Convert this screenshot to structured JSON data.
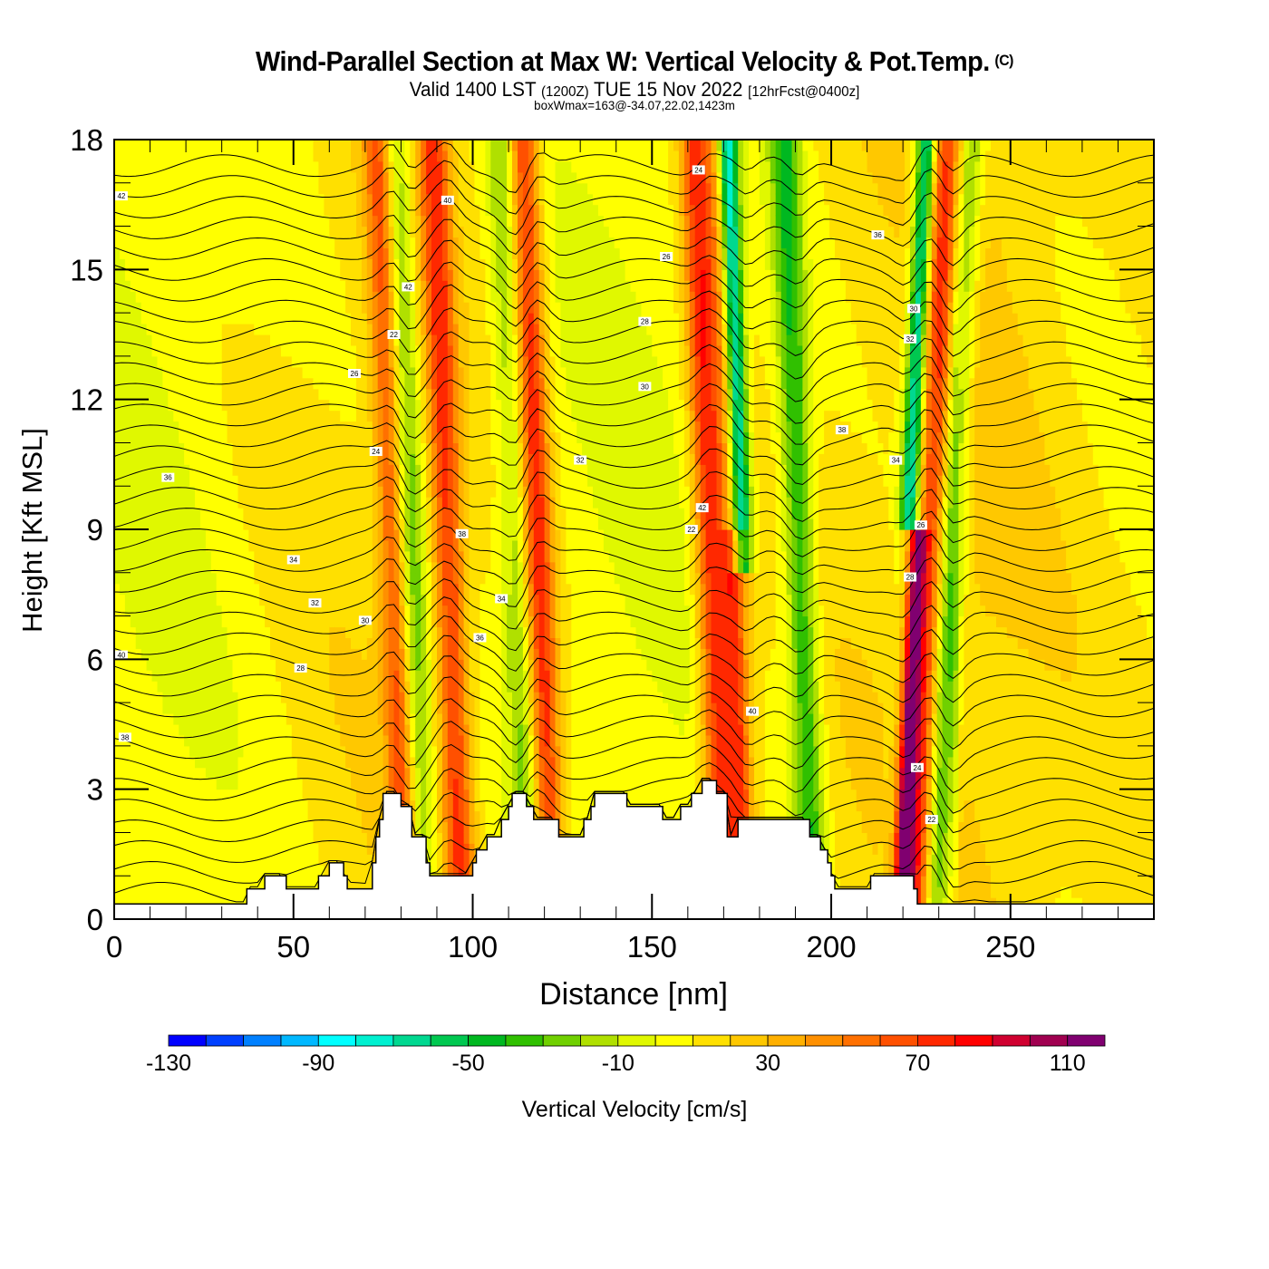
{
  "chart_data": {
    "type": "heatmap",
    "title": "Wind-Parallel Section at Max W: Vertical Velocity & Pot.Temp.",
    "copyright": "(C)",
    "subtitle_main": "Valid 1400 LST",
    "subtitle_utc": "(1200Z)",
    "subtitle_date": "TUE 15 Nov 2022",
    "subtitle_fcst": "[12hrFcst@0400z]",
    "subsubtitle": "boxWmax=163@-34.07,22.02,1423m",
    "xlabel": "Distance [nm]",
    "ylabel": "Height [Kft MSL]",
    "xlim": [
      0,
      290
    ],
    "ylim": [
      0,
      18
    ],
    "xticks": [
      "0",
      "50",
      "100",
      "150",
      "200",
      "250"
    ],
    "xtick_values": [
      0,
      50,
      100,
      150,
      200,
      250
    ],
    "yticks": [
      "0",
      "3",
      "6",
      "9",
      "12",
      "15",
      "18"
    ],
    "ytick_values": [
      0,
      3,
      6,
      9,
      12,
      15,
      18
    ],
    "colorbar": {
      "label": "Vertical Velocity [cm/s]",
      "tick_labels": [
        "-130",
        "-90",
        "-50",
        "-10",
        "30",
        "70",
        "110"
      ],
      "tick_values": [
        -130,
        -90,
        -50,
        -10,
        30,
        70,
        110
      ],
      "min": -130,
      "step": 10,
      "colors": [
        "#0000ff",
        "#0040ff",
        "#0080ff",
        "#00b8ff",
        "#00ffff",
        "#00f0d0",
        "#00d890",
        "#00c850",
        "#00b820",
        "#30c000",
        "#70d000",
        "#b0e000",
        "#e0f800",
        "#ffff00",
        "#ffe000",
        "#ffc800",
        "#ffb000",
        "#ff9000",
        "#ff7000",
        "#ff5000",
        "#ff2800",
        "#ff0000",
        "#d00030",
        "#a00050",
        "#800070"
      ]
    },
    "updraft_bands": [
      {
        "x_nm": 78,
        "w_cms": 60
      },
      {
        "x_nm": 93,
        "w_cms": 60
      },
      {
        "x_nm": 118,
        "w_cms": 70
      },
      {
        "x_nm": 166,
        "w_cms": 70
      },
      {
        "x_nm": 173,
        "w_cms": 80
      },
      {
        "x_nm": 224,
        "w_cms": 100
      },
      {
        "x_nm": 229,
        "w_cms": 70
      }
    ],
    "downdraft_bands": [
      {
        "x_nm": 82,
        "w_cms": -50
      },
      {
        "x_nm": 112,
        "w_cms": -30
      },
      {
        "x_nm": 175,
        "w_cms": -110
      },
      {
        "x_nm": 191,
        "w_cms": -50
      },
      {
        "x_nm": 222,
        "w_cms": -100
      },
      {
        "x_nm": 233,
        "w_cms": -60
      }
    ],
    "terrain_kft": [
      [
        0,
        0.35
      ],
      [
        36,
        0.35
      ],
      [
        37,
        0.7
      ],
      [
        41,
        0.7
      ],
      [
        42,
        1.0
      ],
      [
        47,
        1.0
      ],
      [
        48,
        0.7
      ],
      [
        56,
        0.7
      ],
      [
        57,
        1.0
      ],
      [
        59,
        1.0
      ],
      [
        60,
        1.3
      ],
      [
        63,
        1.3
      ],
      [
        64,
        1.0
      ],
      [
        65,
        0.7
      ],
      [
        71,
        0.7
      ],
      [
        72,
        1.3
      ],
      [
        73,
        1.9
      ],
      [
        74,
        2.3
      ],
      [
        75,
        2.9
      ],
      [
        79,
        2.9
      ],
      [
        80,
        2.6
      ],
      [
        82,
        2.6
      ],
      [
        83,
        1.9
      ],
      [
        86,
        1.9
      ],
      [
        87,
        1.3
      ],
      [
        88,
        1.0
      ],
      [
        99,
        1.0
      ],
      [
        100,
        1.3
      ],
      [
        101,
        1.6
      ],
      [
        103,
        1.6
      ],
      [
        104,
        1.9
      ],
      [
        107,
        1.9
      ],
      [
        108,
        2.3
      ],
      [
        110,
        2.6
      ],
      [
        111,
        2.9
      ],
      [
        114,
        2.9
      ],
      [
        115,
        2.6
      ],
      [
        117,
        2.3
      ],
      [
        123,
        2.3
      ],
      [
        124,
        1.9
      ],
      [
        130,
        1.9
      ],
      [
        131,
        2.3
      ],
      [
        133,
        2.6
      ],
      [
        134,
        2.9
      ],
      [
        142,
        2.9
      ],
      [
        143,
        2.6
      ],
      [
        152,
        2.6
      ],
      [
        153,
        2.3
      ],
      [
        157,
        2.3
      ],
      [
        158,
        2.6
      ],
      [
        160,
        2.6
      ],
      [
        161,
        2.9
      ],
      [
        163,
        2.9
      ],
      [
        164,
        3.2
      ],
      [
        167,
        3.2
      ],
      [
        168,
        2.9
      ],
      [
        170,
        2.9
      ],
      [
        171,
        1.9
      ],
      [
        173,
        1.9
      ],
      [
        174,
        2.3
      ],
      [
        193,
        2.3
      ],
      [
        194,
        1.9
      ],
      [
        196,
        1.9
      ],
      [
        197,
        1.6
      ],
      [
        199,
        1.3
      ],
      [
        200,
        1.0
      ],
      [
        201,
        0.7
      ],
      [
        210,
        0.7
      ],
      [
        211,
        1.0
      ],
      [
        222,
        1.0
      ],
      [
        223,
        0.7
      ],
      [
        224,
        0.35
      ],
      [
        290,
        0.35
      ]
    ],
    "theta_contour_labels": [
      "42",
      "40",
      "38",
      "36",
      "34",
      "32",
      "30",
      "28",
      "26",
      "24",
      "22"
    ],
    "theta_contour_values_c": [
      22,
      24,
      26,
      28,
      30,
      32,
      34,
      36,
      38,
      40,
      42
    ]
  }
}
